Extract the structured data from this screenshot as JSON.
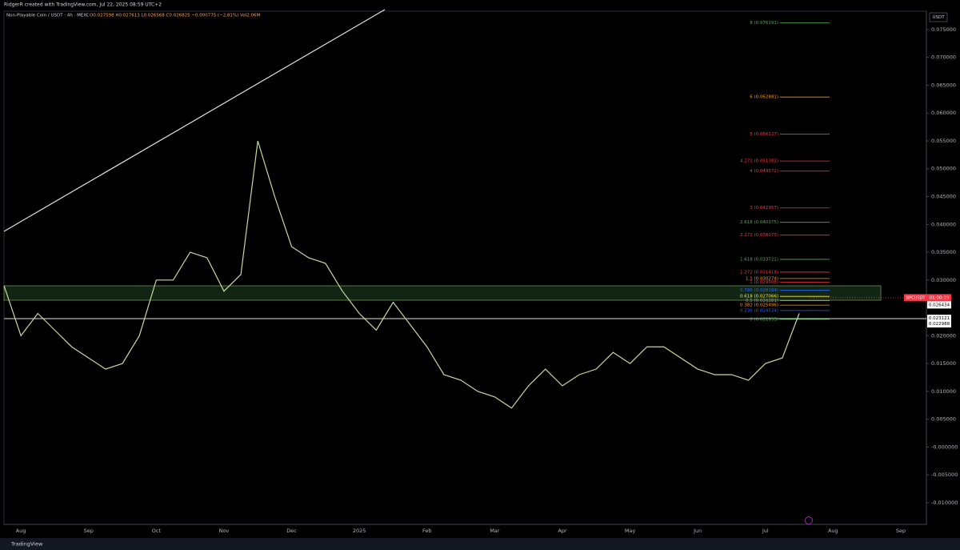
{
  "header": {
    "credit": "RidgerR created with TradingView.com, Jul 22, 2025 08:59 UTC+2",
    "footer": "TradingView"
  },
  "chart_data": {
    "type": "line",
    "title": "Non-Playable Coin / USDT · 4h · MEXC",
    "subtitle": "O0.027598 H0.027613 L0.026568 C0.026825 −0.000775 (−2.81%) Vol2.06M",
    "y_axis_label": "USDT",
    "categories": [
      null,
      "Aug",
      null,
      null,
      null,
      "Sep",
      null,
      null,
      null,
      "Oct",
      null,
      null,
      null,
      "Nov",
      null,
      null,
      null,
      "Dec",
      null,
      null,
      null,
      "2025",
      null,
      null,
      null,
      "Feb",
      null,
      null,
      null,
      "Mar",
      null,
      null,
      null,
      "Apr",
      null,
      null,
      null,
      "May",
      null,
      null,
      null,
      "Jun",
      null,
      null,
      null,
      "Jul",
      null,
      null,
      null,
      "Aug",
      null,
      null,
      null,
      "Sep",
      null
    ],
    "series": [
      {
        "name": "NPCUSDT",
        "color": "#c8d89a",
        "values": [
          0.029,
          0.02,
          0.024,
          0.021,
          0.018,
          0.016,
          0.014,
          0.015,
          0.02,
          0.03,
          0.03,
          0.035,
          0.034,
          0.028,
          0.031,
          0.055,
          0.045,
          0.036,
          0.034,
          0.033,
          0.028,
          0.024,
          0.021,
          0.026,
          0.022,
          0.018,
          0.013,
          0.012,
          0.01,
          0.009,
          0.007,
          0.011,
          0.014,
          0.011,
          0.013,
          0.014,
          0.017,
          0.015,
          0.018,
          0.018,
          0.016,
          0.014,
          0.013,
          0.013,
          0.012,
          0.015,
          0.016,
          0.024,
          null,
          null,
          null,
          null,
          null,
          null,
          null
        ]
      }
    ],
    "ylim": [
      -0.0139,
      0.0783
    ],
    "yticks": [
      {
        "value": 0.075,
        "label": "0.075000"
      },
      {
        "value": 0.07,
        "label": "0.070000"
      },
      {
        "value": 0.065,
        "label": "0.065000"
      },
      {
        "value": 0.06,
        "label": "0.060000"
      },
      {
        "value": 0.055,
        "label": "0.055000"
      },
      {
        "value": 0.05,
        "label": "0.050000"
      },
      {
        "value": 0.045,
        "label": "0.045000"
      },
      {
        "value": 0.04,
        "label": "0.040000"
      },
      {
        "value": 0.035,
        "label": "0.035000"
      },
      {
        "value": 0.03,
        "label": "0.030000"
      },
      {
        "value": 0.02,
        "label": "0.020000"
      },
      {
        "value": 0.015,
        "label": "0.015000"
      },
      {
        "value": 0.01,
        "label": "0.010000"
      },
      {
        "value": 0.005,
        "label": "0.005000"
      },
      {
        "value": 0,
        "label": "-0.000000"
      },
      {
        "value": -0.005,
        "label": "-0.005000"
      },
      {
        "value": -0.01,
        "label": "-0.010000"
      }
    ],
    "fib_levels": [
      {
        "label": "8 (0.076191)",
        "value": 0.076191,
        "color": "#4caf50"
      },
      {
        "label": "6 (0.062881)",
        "value": 0.062881,
        "color": "#ff9800"
      },
      {
        "label": "5 (0.056227)",
        "value": 0.056227,
        "color": "#f23645"
      },
      {
        "label": "4.272 (0.051382)",
        "value": 0.051382,
        "color": "#f23645"
      },
      {
        "label": "4 (0.049572)",
        "value": 0.049572,
        "color": "#f23645"
      },
      {
        "label": "3 (0.042957)",
        "value": 0.042957,
        "color": "#f23645"
      },
      {
        "label": "2.618 (0.040375)",
        "value": 0.040375,
        "color": "#4caf50"
      },
      {
        "label": "2.272 (0.038073)",
        "value": 0.038073,
        "color": "#f23645"
      },
      {
        "label": "1.618 (0.033721)",
        "value": 0.033721,
        "color": "#4caf50"
      },
      {
        "label": "1.272 (0.031418)",
        "value": 0.031418,
        "color": "#f23645"
      },
      {
        "label": "1.1 (0.030274)",
        "value": 0.030274,
        "color": "#ff9800"
      },
      {
        "label": "1 (0.029608)",
        "value": 0.029608,
        "color": "#f23645"
      },
      {
        "label": "0.786 (0.028184)",
        "value": 0.028184,
        "color": "#2962ff"
      },
      {
        "label": "0.618 (0.027066)",
        "value": 0.027066,
        "color": "#ffeb3b"
      },
      {
        "label": "0.5 (0.026281)",
        "value": 0.026281,
        "color": "#9e9e9e"
      },
      {
        "label": "0.382 (0.025496)",
        "value": 0.025496,
        "color": "#ff9800"
      },
      {
        "label": "0.236 (0.024524)",
        "value": 0.024524,
        "color": "#2962ff"
      },
      {
        "label": "0 (0.022953)",
        "value": 0.022953,
        "color": "#4caf50"
      }
    ],
    "price_labels": [
      {
        "label": "0.026434",
        "value": 0.026434
      },
      {
        "label": "0.023121",
        "value": 0.023121
      },
      {
        "label": "0.022988",
        "value": 0.022988
      }
    ],
    "last_price": {
      "symbol": "NPCUSDT",
      "countdown": "01:00:19",
      "value": 0.026825
    },
    "grid": false
  }
}
